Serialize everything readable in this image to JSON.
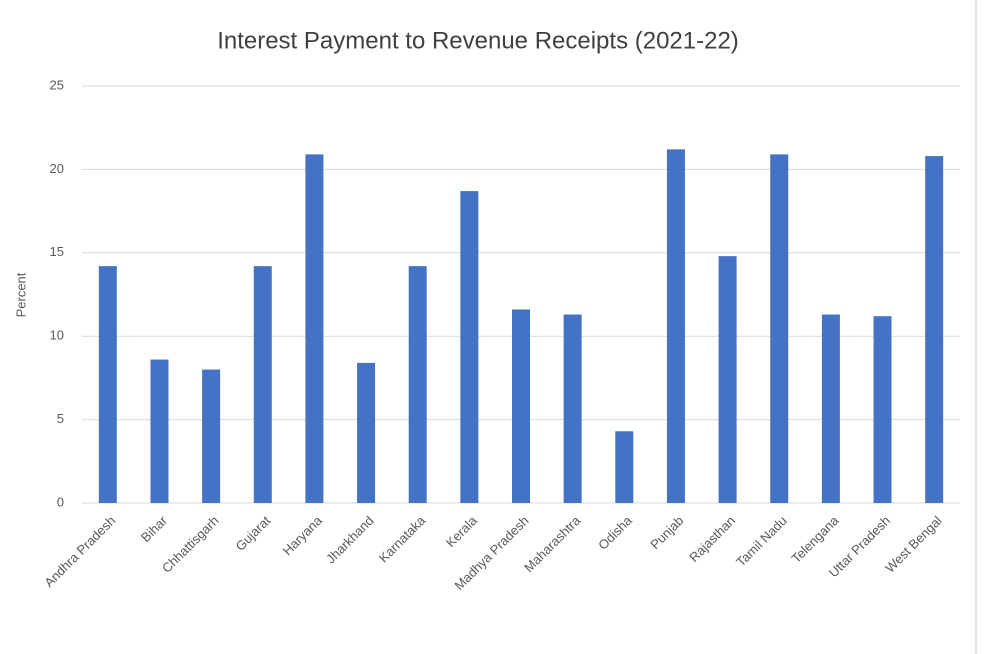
{
  "chart_data": {
    "type": "bar",
    "title": "Interest Payment to Revenue Receipts (2021-22)",
    "y_label": "Percent",
    "categories": [
      "Andhra Pradesh",
      "Bihar",
      "Chhattisgarh",
      "Gujarat",
      "Haryana",
      "Jharkhand",
      "Karnataka",
      "Kerala",
      "Madhya Pradesh",
      "Maharashtra",
      "Odisha",
      "Punjab",
      "Rajasthan",
      "Tamil Nadu",
      "Telengana",
      "Uttar Pradesh",
      "West Bengal"
    ],
    "values": [
      14.2,
      8.6,
      8.0,
      14.2,
      20.9,
      8.4,
      14.2,
      18.7,
      11.6,
      11.3,
      4.3,
      21.2,
      14.8,
      20.9,
      11.3,
      11.2,
      20.8
    ],
    "color": "#4472c4",
    "ylim": [
      0,
      25
    ],
    "yticks": [
      0,
      5,
      10,
      15,
      20,
      25
    ],
    "grid": true
  }
}
